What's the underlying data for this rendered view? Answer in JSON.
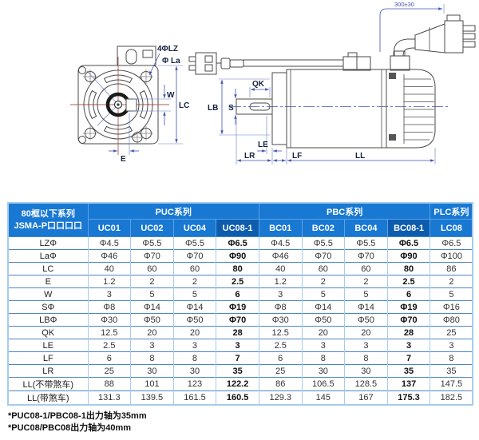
{
  "diagram": {
    "front": {
      "label_4phi_lz": "4ΦLZ",
      "label_phi_la": "Φ La",
      "label_w": "W",
      "label_lc": "LC",
      "label_e": "E"
    },
    "side": {
      "label_qk": "QK",
      "label_lb": "LB",
      "label_s": "S",
      "label_le": "LE",
      "label_lr": "LR",
      "label_lf": "LF",
      "label_ll": "LL",
      "label_cable_length": "300±30"
    }
  },
  "table": {
    "corner": {
      "line1": "80框以下系列",
      "line2": "JSMA-P口口口口"
    },
    "groups": [
      {
        "label": "PUC系列",
        "span": 4
      },
      {
        "label": "PBC系列",
        "span": 4
      },
      {
        "label": "PLC系列",
        "span": 1
      }
    ],
    "columns": [
      "UC01",
      "UC02",
      "UC04",
      "UC08-1",
      "BC01",
      "BC02",
      "BC04",
      "BC08-1",
      "LC08"
    ],
    "highlight_columns": [
      "UC08-1",
      "BC08-1"
    ],
    "rows": [
      {
        "label": "LZΦ",
        "values": [
          "Φ4.5",
          "Φ5.5",
          "Φ5.5",
          "Φ6.5",
          "Φ4.5",
          "Φ5.5",
          "Φ5.5",
          "Φ6.5",
          "Φ6.5"
        ]
      },
      {
        "label": "LaΦ",
        "values": [
          "Φ46",
          "Φ70",
          "Φ70",
          "Φ90",
          "Φ46",
          "Φ70",
          "Φ70",
          "Φ90",
          "Φ100"
        ]
      },
      {
        "label": "LC",
        "values": [
          "40",
          "60",
          "60",
          "80",
          "40",
          "60",
          "60",
          "80",
          "86"
        ]
      },
      {
        "label": "E",
        "values": [
          "1.2",
          "2",
          "2",
          "2.5",
          "1.2",
          "2",
          "2",
          "2.5",
          "2"
        ]
      },
      {
        "label": "W",
        "values": [
          "3",
          "5",
          "5",
          "6",
          "3",
          "5",
          "5",
          "6",
          "5"
        ]
      },
      {
        "label": "SΦ",
        "values": [
          "Φ8",
          "Φ14",
          "Φ14",
          "Φ19",
          "Φ8",
          "Φ14",
          "Φ14",
          "Φ19",
          "Φ16"
        ]
      },
      {
        "label": "LBΦ",
        "values": [
          "Φ30",
          "Φ50",
          "Φ50",
          "Φ70",
          "Φ30",
          "Φ50",
          "Φ50",
          "Φ70",
          "Φ80"
        ]
      },
      {
        "label": "QK",
        "values": [
          "12.5",
          "20",
          "20",
          "28",
          "12.5",
          "20",
          "20",
          "28",
          "25"
        ]
      },
      {
        "label": "LE",
        "values": [
          "2.5",
          "3",
          "3",
          "3",
          "2.5",
          "3",
          "3",
          "3",
          "3"
        ]
      },
      {
        "label": "LF",
        "values": [
          "6",
          "8",
          "8",
          "7",
          "6",
          "8",
          "8",
          "7",
          "8"
        ]
      },
      {
        "label": "LR",
        "values": [
          "25",
          "30",
          "30",
          "35",
          "25",
          "30",
          "30",
          "35",
          "35"
        ]
      },
      {
        "label": "LL(不带煞车)",
        "values": [
          "88",
          "101",
          "123",
          "122.2",
          "86",
          "106.5",
          "128.5",
          "137",
          "147.5"
        ]
      },
      {
        "label": "LL(带煞车)",
        "values": [
          "131.3",
          "139.5",
          "161.5",
          "160.5",
          "129.3",
          "145",
          "167",
          "175.3",
          "182.5"
        ]
      }
    ]
  },
  "notes": [
    "*PUC08-1/PBC08-1出力轴为35mm",
    "*PUC08/PBC08出力轴为40mm"
  ],
  "colors": {
    "header_blue": "#1878d2",
    "header_dark_blue": "#0d5cae",
    "border_light": "#a6cbec",
    "border_dark": "#4d86c8",
    "dimension_blue": "#4054b2",
    "centerline_red": "#b25a5a"
  }
}
